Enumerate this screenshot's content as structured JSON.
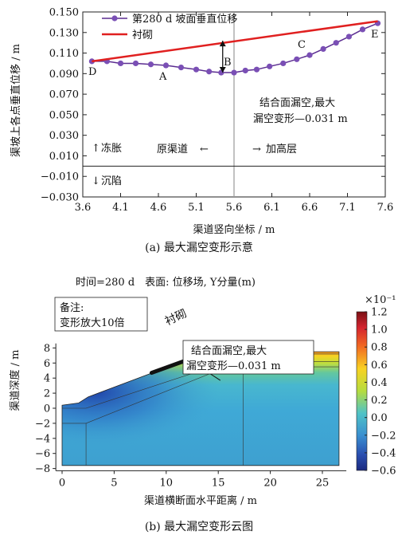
{
  "top": {
    "ylabel": "渠坡上各点垂直位移 / m",
    "xlabel": "渠道竖向坐标 / m",
    "caption": "(a) 最大漏空变形示意",
    "legend": {
      "displacement": "第280 d 坡面垂直位移",
      "lining": "衬砌"
    },
    "point_labels": [
      "D",
      "A",
      "B",
      "C",
      "E"
    ],
    "annotation_line1": "结合面漏空,最大",
    "annotation_line2": "漏空变形—0.031 m",
    "frost_heave": "冻胀",
    "subsidence": "沉陷",
    "original_channel": "原渠道",
    "raised_layer": "加高层",
    "arrow_up": "↑",
    "arrow_down": "↓",
    "arrow_left": "←",
    "arrow_right": "→"
  },
  "bottom": {
    "title": "时间=280 d　表面: 位移场, Y分量(m)",
    "xlabel": "渠道横断面水平距离 / m",
    "ylabel": "渠道深度 / m",
    "caption": "(b) 最大漏空变形云图",
    "note_line1": "备注:",
    "note_line2": "变形放大10倍",
    "lining_label": "衬砌",
    "annotation_line1": "结合面漏空,最大",
    "annotation_line2": "漏空变形—0.031 m",
    "colorbar_exponent": "×10⁻¹",
    "colorbar_ticks": [
      "1.2",
      "1.0",
      "0.8",
      "0.6",
      "0.4",
      "0.2",
      "0.0",
      "−0.2",
      "−0.4",
      "−0.6"
    ]
  },
  "chart_data": [
    {
      "type": "line",
      "xlim": [
        3.6,
        7.6
      ],
      "ylim": [
        -0.03,
        0.15
      ],
      "xticks": [
        3.6,
        4.1,
        4.6,
        5.1,
        5.6,
        6.1,
        6.6,
        7.1,
        7.6
      ],
      "yticks": [
        -0.03,
        -0.01,
        0.01,
        0.03,
        0.05,
        0.07,
        0.09,
        0.11,
        0.13,
        0.15
      ],
      "grid": false,
      "legend_position": "top",
      "series": [
        {
          "name": "第280 d 坡面垂直位移",
          "color": "#5b2d91",
          "marker": "circle",
          "x": [
            3.72,
            3.92,
            4.1,
            4.3,
            4.5,
            4.7,
            4.9,
            5.1,
            5.27,
            5.43,
            5.6,
            5.75,
            5.9,
            6.07,
            6.25,
            6.43,
            6.6,
            6.78,
            6.95,
            7.12,
            7.3,
            7.5
          ],
          "y": [
            0.102,
            0.102,
            0.1,
            0.1,
            0.099,
            0.098,
            0.096,
            0.094,
            0.092,
            0.091,
            0.091,
            0.093,
            0.094,
            0.097,
            0.1,
            0.104,
            0.108,
            0.114,
            0.12,
            0.126,
            0.133,
            0.139
          ]
        },
        {
          "name": "衬砌",
          "color": "#e02020",
          "x": [
            3.72,
            7.5
          ],
          "y": [
            0.102,
            0.141
          ]
        }
      ],
      "reference_lines": {
        "vertical_x": 5.6,
        "horizontal_y": 0.0
      },
      "gap_arrow": {
        "x": 5.45,
        "y_from": 0.091,
        "y_to": 0.122
      }
    },
    {
      "type": "heatmap",
      "title": "时间=280 d 表面: 位移场, Y分量(m)",
      "xlabel": "渠道横断面水平距离 / m",
      "ylabel": "渠道深度 / m",
      "xlim": [
        -1,
        28
      ],
      "ylim": [
        -8.5,
        9
      ],
      "xticks": [
        0,
        5,
        10,
        15,
        20,
        25
      ],
      "yticks": [
        -8,
        -6,
        -4,
        -2,
        0,
        2,
        4,
        6,
        8
      ],
      "colorbar": {
        "min": -0.6,
        "max": 1.2,
        "scale": "×10⁻¹",
        "ticks": [
          1.2,
          1.0,
          0.8,
          0.6,
          0.4,
          0.2,
          0.0,
          -0.2,
          -0.4,
          -0.6
        ]
      }
    }
  ]
}
